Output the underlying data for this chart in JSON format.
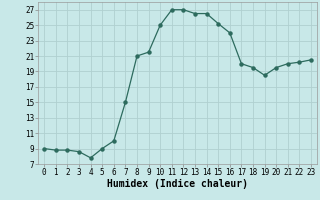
{
  "xlabel": "Humidex (Indice chaleur)",
  "x": [
    0,
    1,
    2,
    3,
    4,
    5,
    6,
    7,
    8,
    9,
    10,
    11,
    12,
    13,
    14,
    15,
    16,
    17,
    18,
    19,
    20,
    21,
    22,
    23
  ],
  "y": [
    9,
    8.8,
    8.8,
    8.6,
    7.8,
    9,
    10,
    15,
    21,
    21.5,
    25,
    27,
    27,
    26.5,
    26.5,
    25.2,
    24,
    20,
    19.5,
    18.5,
    19.5,
    20,
    20.2,
    20.5
  ],
  "line_color": "#2d6b5e",
  "marker_color": "#2d6b5e",
  "bg_color": "#c8e8e8",
  "grid_color": "#b0d0d0",
  "ylim": [
    7,
    28
  ],
  "xlim": [
    -0.5,
    23.5
  ],
  "yticks": [
    7,
    9,
    11,
    13,
    15,
    17,
    19,
    21,
    23,
    25,
    27
  ],
  "xticks": [
    0,
    1,
    2,
    3,
    4,
    5,
    6,
    7,
    8,
    9,
    10,
    11,
    12,
    13,
    14,
    15,
    16,
    17,
    18,
    19,
    20,
    21,
    22,
    23
  ],
  "tick_fontsize": 5.5,
  "xlabel_fontsize": 7,
  "marker_size": 2.2,
  "line_width": 0.9
}
